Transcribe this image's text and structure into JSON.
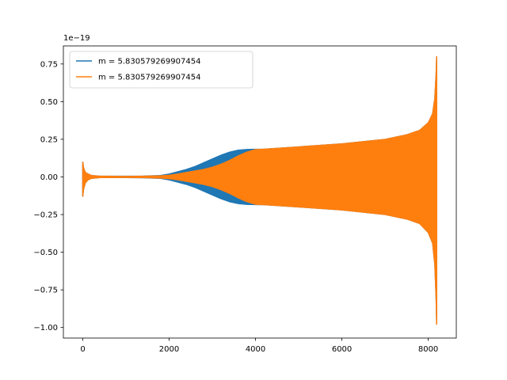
{
  "chart_data": {
    "type": "line",
    "title": "",
    "xlabel": "",
    "ylabel": "",
    "y_offset_label": "1e−19",
    "xlim": [
      -450,
      8650
    ],
    "ylim": [
      -1.07,
      0.87
    ],
    "x_ticks": [
      0,
      2000,
      4000,
      6000,
      8000
    ],
    "x_tick_labels": [
      "0",
      "2000",
      "4000",
      "6000",
      "8000"
    ],
    "y_ticks": [
      0.75,
      0.5,
      0.25,
      0.0,
      -0.25,
      -0.5,
      -0.75,
      -1.0
    ],
    "y_tick_labels": [
      "0.75",
      "0.50",
      "0.25",
      "0.00",
      "−0.25",
      "−0.50",
      "−0.75",
      "−1.00"
    ],
    "grid": false,
    "legend_position": "upper-left",
    "series": [
      {
        "name": "m = 5.830579269907454",
        "color": "#1f77b4",
        "envelope": {
          "x": [
            0,
            20,
            60,
            120,
            200,
            400,
            1000,
            1400,
            1800,
            2000,
            2200,
            2400,
            2600,
            2800,
            3000,
            3200,
            3400,
            3600,
            3800,
            4000,
            4200,
            5000,
            6000,
            7000,
            7500,
            7800,
            8000,
            8100,
            8150,
            8180,
            8195
          ],
          "upper": [
            0.1,
            0.06,
            0.03,
            0.02,
            0.01,
            0.005,
            0.005,
            0.006,
            0.01,
            0.02,
            0.035,
            0.05,
            0.07,
            0.095,
            0.12,
            0.145,
            0.165,
            0.178,
            0.183,
            0.184,
            0.185,
            0.2,
            0.22,
            0.25,
            0.28,
            0.31,
            0.36,
            0.42,
            0.52,
            0.68,
            0.8
          ],
          "lower": [
            -0.13,
            -0.08,
            -0.04,
            -0.02,
            -0.01,
            -0.005,
            -0.005,
            -0.006,
            -0.01,
            -0.02,
            -0.035,
            -0.05,
            -0.07,
            -0.095,
            -0.12,
            -0.145,
            -0.165,
            -0.178,
            -0.183,
            -0.184,
            -0.185,
            -0.2,
            -0.22,
            -0.25,
            -0.28,
            -0.31,
            -0.37,
            -0.44,
            -0.58,
            -0.8,
            -0.98
          ]
        }
      },
      {
        "name": "m = 5.830579269907454",
        "color": "#ff7f0e",
        "envelope": {
          "x": [
            0,
            20,
            60,
            120,
            200,
            400,
            1000,
            1400,
            1800,
            2000,
            2200,
            2400,
            2600,
            2800,
            3000,
            3200,
            3400,
            3600,
            3800,
            4000,
            4200,
            5000,
            6000,
            7000,
            7500,
            7800,
            8000,
            8100,
            8150,
            8180,
            8195
          ],
          "upper": [
            0.1,
            0.06,
            0.03,
            0.02,
            0.01,
            0.005,
            0.004,
            0.005,
            0.008,
            0.012,
            0.02,
            0.03,
            0.04,
            0.05,
            0.065,
            0.085,
            0.11,
            0.14,
            0.165,
            0.182,
            0.185,
            0.2,
            0.22,
            0.25,
            0.28,
            0.31,
            0.36,
            0.42,
            0.52,
            0.68,
            0.8
          ],
          "lower": [
            -0.13,
            -0.08,
            -0.04,
            -0.02,
            -0.01,
            -0.005,
            -0.004,
            -0.005,
            -0.008,
            -0.012,
            -0.02,
            -0.03,
            -0.04,
            -0.05,
            -0.065,
            -0.085,
            -0.11,
            -0.14,
            -0.165,
            -0.182,
            -0.185,
            -0.2,
            -0.22,
            -0.25,
            -0.28,
            -0.31,
            -0.37,
            -0.44,
            -0.58,
            -0.8,
            -0.98
          ]
        }
      }
    ]
  }
}
